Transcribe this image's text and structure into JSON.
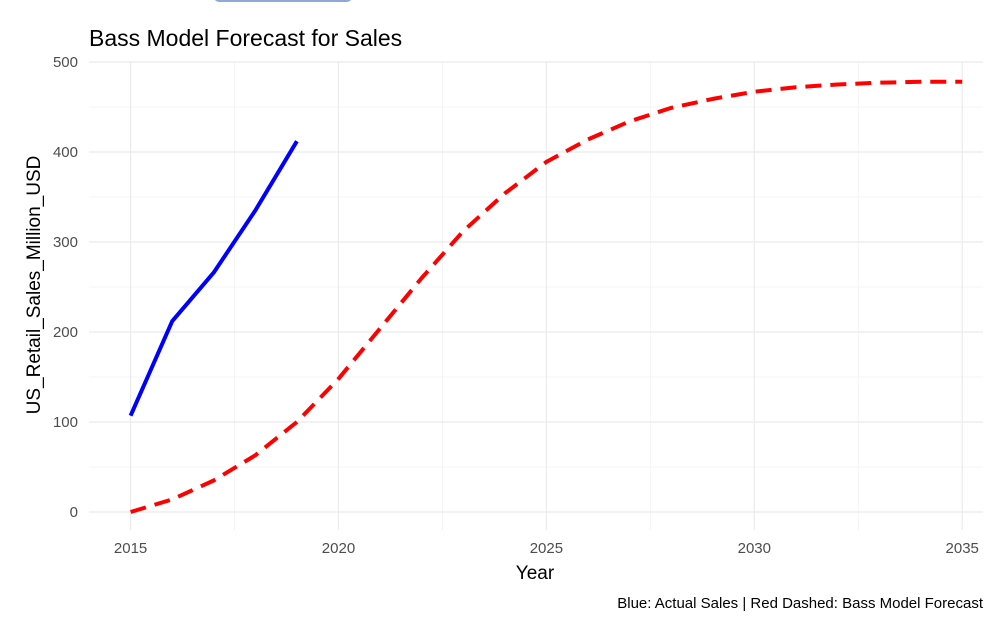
{
  "chart_data": {
    "type": "line",
    "title": "Bass Model Forecast for Sales",
    "xlabel": "Year",
    "ylabel": "US_Retail_Sales_Million_USD",
    "caption": "Blue: Actual Sales | Red Dashed: Bass Model Forecast",
    "xlim": [
      2014,
      2035.5
    ],
    "ylim": [
      -20,
      500
    ],
    "x_ticks": [
      2015,
      2020,
      2025,
      2030,
      2035
    ],
    "y_ticks": [
      0,
      100,
      200,
      300,
      400,
      500
    ],
    "grid": true,
    "series": [
      {
        "color": "#0000ff",
        "style": "solid",
        "x": [
          2015,
          2016,
          2017,
          2018,
          2019
        ],
        "y": [
          107,
          212,
          266,
          335,
          412
        ]
      },
      {
        "color": "#ff0000",
        "style": "dashed",
        "x": [
          2015,
          2016,
          2017,
          2018,
          2019,
          2020,
          2021,
          2022,
          2023,
          2024,
          2025,
          2026,
          2027,
          2028,
          2029,
          2030,
          2031,
          2032,
          2033,
          2034,
          2035
        ],
        "y": [
          0,
          14,
          35,
          63,
          100,
          148,
          204,
          260,
          312,
          354,
          389,
          414,
          434,
          449,
          459,
          467,
          472,
          475,
          477,
          478,
          478
        ]
      }
    ]
  }
}
